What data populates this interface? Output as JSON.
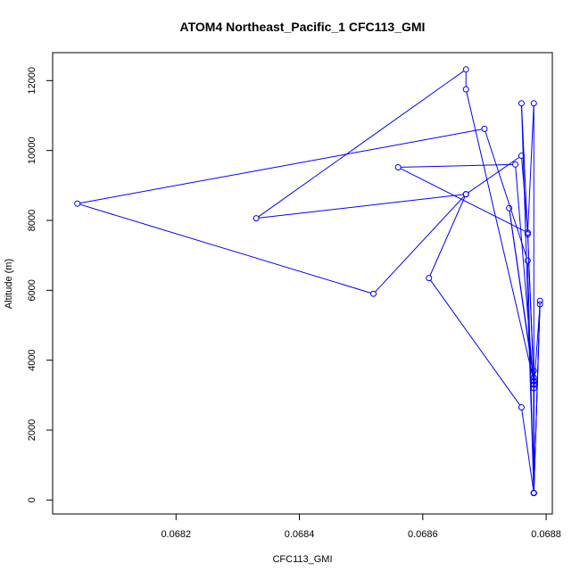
{
  "chart_data": {
    "type": "line",
    "title": "ATOM4 Northeast_Pacific_1 CFC113_GMI",
    "xlabel": "CFC113_GMI",
    "ylabel": "Altitude (m)",
    "xlim": [
      0.068,
      0.06881
    ],
    "ylim": [
      -400,
      12800
    ],
    "x_ticks": [
      0.0682,
      0.0684,
      0.0686,
      0.0688
    ],
    "x_tick_labels": [
      "0.0682",
      "0.0684",
      "0.0686",
      "0.0688"
    ],
    "y_ticks": [
      0,
      2000,
      4000,
      6000,
      8000,
      10000,
      12000
    ],
    "y_tick_labels": [
      "0",
      "2000",
      "4000",
      "6000",
      "8000",
      "10000",
      "12000"
    ],
    "grid": false,
    "series": [
      {
        "color": "#0000ff",
        "marker": "open-circle",
        "x": [
          0.06878,
          0.06878,
          0.06877,
          0.06856,
          0.06875,
          0.06878,
          0.06879,
          0.06878,
          0.06878,
          0.06877,
          0.06876,
          0.06878,
          0.06878,
          0.06874,
          0.06878,
          0.06878,
          0.06878,
          0.06876,
          0.06861,
          0.06867,
          0.06852,
          0.06804,
          0.0687,
          0.06877,
          0.06878,
          0.06879,
          0.06878,
          0.06878,
          0.06867,
          0.06867,
          0.06833,
          0.06867,
          0.06876,
          0.06877,
          0.06878,
          0.06878,
          0.06878,
          0.06878
        ],
        "y": [
          200,
          3300,
          7650,
          9520,
          9600,
          3200,
          5600,
          200,
          11350,
          7600,
          11350,
          200,
          3500,
          8350,
          3400,
          3700,
          200,
          2650,
          6350,
          8750,
          5900,
          8480,
          10620,
          6850,
          200,
          5700,
          200,
          3400,
          11750,
          12320,
          8060,
          8750,
          9850,
          7650,
          3400,
          200,
          3300,
          200
        ]
      }
    ]
  }
}
